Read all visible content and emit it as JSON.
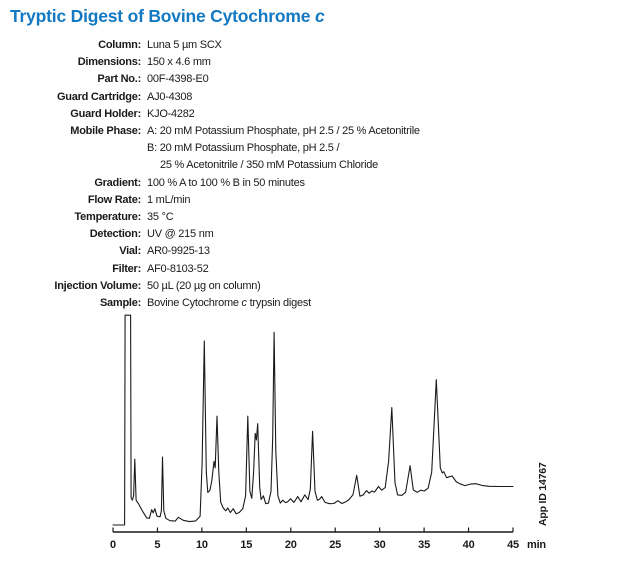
{
  "page": {
    "title_main": "Tryptic Digest of Bovine Cytochrome ",
    "title_italic": "c"
  },
  "params": {
    "rows": [
      {
        "label": "Column:",
        "value": "Luna 5 µm SCX"
      },
      {
        "label": "Dimensions:",
        "value": "150 x 4.6 mm"
      },
      {
        "label": "Part No.:",
        "value": "00F-4398-E0"
      },
      {
        "label": "Guard Cartridge:",
        "value": "AJ0-4308"
      },
      {
        "label": "Guard Holder:",
        "value": "KJO-4282"
      }
    ],
    "mobile_phase": {
      "label": "Mobile Phase:",
      "line_a": "A: 20 mM Potassium Phosphate, pH 2.5 / 25 % Acetonitrile",
      "line_b": "B: 20 mM Potassium Phosphate, pH 2.5 /",
      "line_b2": "25 % Acetonitrile / 350 mM Potassium Chloride"
    },
    "rows2": [
      {
        "label": "Gradient:",
        "value": "100 % A to 100 % B in 50 minutes"
      },
      {
        "label": "Flow Rate:",
        "value": "1 mL/min"
      },
      {
        "label": "Temperature:",
        "value": "35 °C"
      },
      {
        "label": "Detection:",
        "value": "UV @ 215 nm"
      },
      {
        "label": "Vial:",
        "value": "AR0-9925-13"
      },
      {
        "label": "Filter:",
        "value": "AF0-8103-52"
      },
      {
        "label": "Injection Volume:",
        "value": "50 µL (20 µg on column)"
      }
    ],
    "sample": {
      "label": "Sample:",
      "pre": "Bovine Cytochrome ",
      "italic": "c",
      "post": " trypsin digest"
    }
  },
  "chart_data": {
    "type": "line",
    "title": "",
    "xlabel": "min",
    "ylabel": "",
    "x_range": [
      0,
      45
    ],
    "xticks": [
      0,
      5,
      10,
      15,
      20,
      25,
      30,
      35,
      40,
      45
    ],
    "xticklabels": [
      "0",
      "5",
      "10",
      "15",
      "20",
      "25",
      "30",
      "35",
      "40",
      "45"
    ],
    "x_unit_label": "min",
    "y_range": [
      0,
      100
    ],
    "y_unit": "relative intensity (% of full scale)",
    "y_axis_shown": false,
    "grid": false,
    "legend": "none",
    "annotation": "App ID 14767",
    "major_peaks_min": [
      {
        "t": 1.7,
        "height_pct": 99,
        "note": "solvent front, clipped at top"
      },
      {
        "t": 2.45,
        "height_pct": 32
      },
      {
        "t": 5.57,
        "height_pct": 33
      },
      {
        "t": 10.27,
        "height_pct": 87
      },
      {
        "t": 11.7,
        "height_pct": 52
      },
      {
        "t": 15.17,
        "height_pct": 52
      },
      {
        "t": 16.28,
        "height_pct": 48.5
      },
      {
        "t": 18.12,
        "height_pct": 91
      },
      {
        "t": 22.46,
        "height_pct": 45
      },
      {
        "t": 27.42,
        "height_pct": 24.5
      },
      {
        "t": 31.37,
        "height_pct": 56
      },
      {
        "t": 33.42,
        "height_pct": 29
      },
      {
        "t": 36.37,
        "height_pct": 69
      }
    ],
    "series": [
      {
        "name": "Bovine Cytochrome c tryptic digest, UV @ 215 nm",
        "points": [
          [
            0,
            1.4
          ],
          [
            1.3,
            1.4
          ],
          [
            1.36,
            99
          ],
          [
            1.98,
            99
          ],
          [
            2.04,
            14
          ],
          [
            2.18,
            13
          ],
          [
            2.32,
            15
          ],
          [
            2.45,
            32
          ],
          [
            2.6,
            13
          ],
          [
            2.9,
            11
          ],
          [
            3.3,
            8
          ],
          [
            3.8,
            4.7
          ],
          [
            4.1,
            4.5
          ],
          [
            4.35,
            8.5
          ],
          [
            4.52,
            7
          ],
          [
            4.7,
            9
          ],
          [
            4.95,
            5.5
          ],
          [
            5.3,
            5.2
          ],
          [
            5.44,
            8
          ],
          [
            5.57,
            33
          ],
          [
            5.72,
            8
          ],
          [
            5.95,
            4.5
          ],
          [
            6.4,
            3.4
          ],
          [
            7.0,
            3.2
          ],
          [
            7.35,
            5
          ],
          [
            7.9,
            3.6
          ],
          [
            8.6,
            3
          ],
          [
            9.3,
            3.3
          ],
          [
            9.8,
            5.5
          ],
          [
            10.02,
            30
          ],
          [
            10.27,
            87
          ],
          [
            10.5,
            26
          ],
          [
            10.66,
            16.5
          ],
          [
            10.9,
            17.5
          ],
          [
            11.12,
            22
          ],
          [
            11.36,
            31
          ],
          [
            11.5,
            28
          ],
          [
            11.7,
            52
          ],
          [
            11.9,
            26
          ],
          [
            12.12,
            12
          ],
          [
            12.4,
            9.3
          ],
          [
            12.68,
            8
          ],
          [
            12.92,
            9.3
          ],
          [
            13.2,
            7.2
          ],
          [
            13.52,
            9
          ],
          [
            13.85,
            6.6
          ],
          [
            14.2,
            7.2
          ],
          [
            14.6,
            9
          ],
          [
            14.92,
            15
          ],
          [
            15.17,
            52
          ],
          [
            15.4,
            17
          ],
          [
            15.62,
            13.8
          ],
          [
            15.82,
            26
          ],
          [
            16.0,
            44
          ],
          [
            16.13,
            41
          ],
          [
            16.28,
            48.5
          ],
          [
            16.5,
            19
          ],
          [
            16.66,
            13.2
          ],
          [
            16.92,
            15
          ],
          [
            17.18,
            11.3
          ],
          [
            17.48,
            11.6
          ],
          [
            17.78,
            17
          ],
          [
            17.97,
            42
          ],
          [
            18.12,
            91
          ],
          [
            18.32,
            36
          ],
          [
            18.55,
            15
          ],
          [
            18.82,
            11.6
          ],
          [
            19.1,
            13
          ],
          [
            19.38,
            11.8
          ],
          [
            19.65,
            12.2
          ],
          [
            19.98,
            13.6
          ],
          [
            20.35,
            11.9
          ],
          [
            20.78,
            14.6
          ],
          [
            21.15,
            12.2
          ],
          [
            21.58,
            15.4
          ],
          [
            21.95,
            13.2
          ],
          [
            22.2,
            18
          ],
          [
            22.46,
            45
          ],
          [
            22.72,
            17
          ],
          [
            23.0,
            12.9
          ],
          [
            23.22,
            13.3
          ],
          [
            23.48,
            14.6
          ],
          [
            23.85,
            11.9
          ],
          [
            24.35,
            11.3
          ],
          [
            24.85,
            11.4
          ],
          [
            25.3,
            12.7
          ],
          [
            25.75,
            11.4
          ],
          [
            26.15,
            12.1
          ],
          [
            26.55,
            13.2
          ],
          [
            27.0,
            15.5
          ],
          [
            27.42,
            24.5
          ],
          [
            27.78,
            14.8
          ],
          [
            28.12,
            15.3
          ],
          [
            28.52,
            17.4
          ],
          [
            28.82,
            16.2
          ],
          [
            29.12,
            17.2
          ],
          [
            29.42,
            16.7
          ],
          [
            29.87,
            19.3
          ],
          [
            30.22,
            17.6
          ],
          [
            30.62,
            18.8
          ],
          [
            31.0,
            31
          ],
          [
            31.37,
            56
          ],
          [
            31.72,
            21
          ],
          [
            32.02,
            15.4
          ],
          [
            32.5,
            15.2
          ],
          [
            32.92,
            16.6
          ],
          [
            33.42,
            29
          ],
          [
            33.78,
            17.7
          ],
          [
            34.22,
            16.6
          ],
          [
            34.62,
            17.6
          ],
          [
            35.02,
            17.2
          ],
          [
            35.45,
            18.5
          ],
          [
            35.85,
            26
          ],
          [
            36.37,
            69
          ],
          [
            36.82,
            28
          ],
          [
            37.05,
            25.6
          ],
          [
            37.22,
            26.2
          ],
          [
            37.52,
            23.4
          ],
          [
            37.82,
            23.8
          ],
          [
            38.15,
            24.2
          ],
          [
            38.6,
            21.6
          ],
          [
            39.0,
            20.6
          ],
          [
            39.6,
            19.7
          ],
          [
            40.2,
            20.4
          ],
          [
            40.8,
            20.6
          ],
          [
            41.5,
            19.8
          ],
          [
            42.3,
            19.4
          ],
          [
            43.5,
            19.3
          ],
          [
            45,
            19.3
          ]
        ]
      }
    ]
  },
  "colors": {
    "title_blue": "#1279c2",
    "trace": "#1a1a1a",
    "text": "#1a1a1a",
    "background": "#ffffff"
  }
}
